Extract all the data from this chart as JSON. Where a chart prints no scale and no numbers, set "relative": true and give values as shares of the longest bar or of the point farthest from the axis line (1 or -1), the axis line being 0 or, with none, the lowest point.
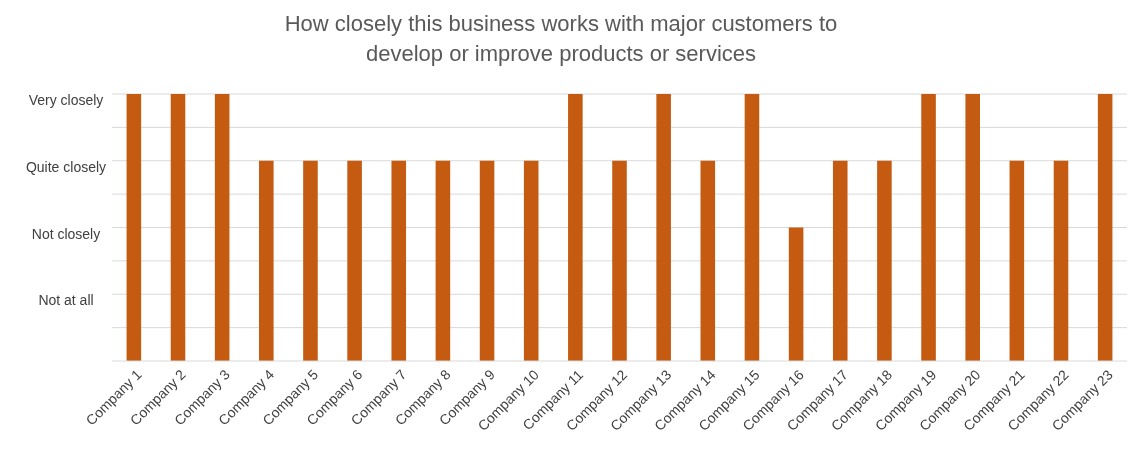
{
  "chart_data": {
    "type": "bar",
    "title": "How closely this business works with major customers to develop or improve products or services",
    "categories": [
      "Company 1",
      "Company 2",
      "Company 3",
      "Company 4",
      "Company 5",
      "Company 6",
      "Company 7",
      "Company 8",
      "Company 9",
      "Company 10",
      "Company 11",
      "Company 12",
      "Company 13",
      "Company 14",
      "Company 15",
      "Company 16",
      "Company 17",
      "Company 18",
      "Company 19",
      "Company 20",
      "Company 21",
      "Company 22",
      "Company 23"
    ],
    "values": [
      1,
      1,
      1,
      0.75,
      0.75,
      0.75,
      0.75,
      0.75,
      0.75,
      0.75,
      1,
      0.75,
      1,
      0.75,
      1,
      0.5,
      0.75,
      0.75,
      1,
      1,
      0.75,
      0.75,
      1
    ],
    "color": "#c55a11",
    "relative": true,
    "ref_lines": [
      {
        "axis": "y",
        "value": 0.125,
        "color": "#d9d9d9"
      },
      {
        "axis": "y",
        "value": 0.25,
        "color": "#d9d9d9",
        "label": "Not at all"
      },
      {
        "axis": "y",
        "value": 0.375,
        "color": "#d9d9d9"
      },
      {
        "axis": "y",
        "value": 0.5,
        "color": "#d9d9d9",
        "label": "Not closely"
      },
      {
        "axis": "y",
        "value": 0.625,
        "color": "#d9d9d9"
      },
      {
        "axis": "y",
        "value": 0.75,
        "color": "#d9d9d9",
        "label": "Quite closely"
      },
      {
        "axis": "y",
        "value": 0.875,
        "color": "#d9d9d9"
      },
      {
        "axis": "y",
        "value": 1,
        "color": "#d9d9d9",
        "label": "Very closely"
      }
    ]
  }
}
